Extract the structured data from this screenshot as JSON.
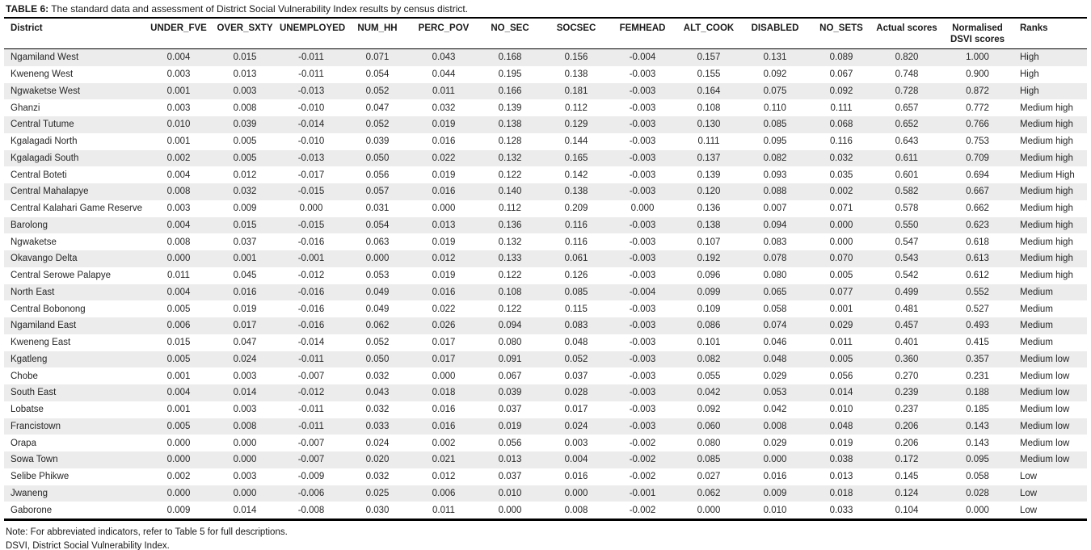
{
  "caption": {
    "label": "TABLE 6:",
    "text": " The standard data and assessment of District Social Vulnerability Index results by census district."
  },
  "table": {
    "columns": [
      "District",
      "UNDER_FVE",
      "OVER_SXTY",
      "UNEMPLOYED",
      "NUM_HH",
      "PERC_POV",
      "NO_SEC",
      "SOCSEC",
      "FEMHEAD",
      "ALT_COOK",
      "DISABLED",
      "NO_SETS",
      "Actual scores",
      "Normalised DSVI scores",
      "Ranks"
    ],
    "rows": [
      [
        "Ngamiland West",
        "0.004",
        "0.015",
        "-0.011",
        "0.071",
        "0.043",
        "0.168",
        "0.156",
        "-0.004",
        "0.157",
        "0.131",
        "0.089",
        "0.820",
        "1.000",
        "High"
      ],
      [
        "Kweneng West",
        "0.003",
        "0.013",
        "-0.011",
        "0.054",
        "0.044",
        "0.195",
        "0.138",
        "-0.003",
        "0.155",
        "0.092",
        "0.067",
        "0.748",
        "0.900",
        "High"
      ],
      [
        "Ngwaketse West",
        "0.001",
        "0.003",
        "-0.013",
        "0.052",
        "0.011",
        "0.166",
        "0.181",
        "-0.003",
        "0.164",
        "0.075",
        "0.092",
        "0.728",
        "0.872",
        "High"
      ],
      [
        "Ghanzi",
        "0.003",
        "0.008",
        "-0.010",
        "0.047",
        "0.032",
        "0.139",
        "0.112",
        "-0.003",
        "0.108",
        "0.110",
        "0.111",
        "0.657",
        "0.772",
        "Medium high"
      ],
      [
        "Central Tutume",
        "0.010",
        "0.039",
        "-0.014",
        "0.052",
        "0.019",
        "0.138",
        "0.129",
        "-0.003",
        "0.130",
        "0.085",
        "0.068",
        "0.652",
        "0.766",
        "Medium high"
      ],
      [
        "Kgalagadi North",
        "0.001",
        "0.005",
        "-0.010",
        "0.039",
        "0.016",
        "0.128",
        "0.144",
        "-0.003",
        "0.111",
        "0.095",
        "0.116",
        "0.643",
        "0.753",
        "Medium high"
      ],
      [
        "Kgalagadi South",
        "0.002",
        "0.005",
        "-0.013",
        "0.050",
        "0.022",
        "0.132",
        "0.165",
        "-0.003",
        "0.137",
        "0.082",
        "0.032",
        "0.611",
        "0.709",
        "Medium high"
      ],
      [
        "Central Boteti",
        "0.004",
        "0.012",
        "-0.017",
        "0.056",
        "0.019",
        "0.122",
        "0.142",
        "-0.003",
        "0.139",
        "0.093",
        "0.035",
        "0.601",
        "0.694",
        "Medium High"
      ],
      [
        "Central Mahalapye",
        "0.008",
        "0.032",
        "-0.015",
        "0.057",
        "0.016",
        "0.140",
        "0.138",
        "-0.003",
        "0.120",
        "0.088",
        "0.002",
        "0.582",
        "0.667",
        "Medium high"
      ],
      [
        "Central Kalahari Game Reserve",
        "0.003",
        "0.009",
        "0.000",
        "0.031",
        "0.000",
        "0.112",
        "0.209",
        "0.000",
        "0.136",
        "0.007",
        "0.071",
        "0.578",
        "0.662",
        "Medium high"
      ],
      [
        "Barolong",
        "0.004",
        "0.015",
        "-0.015",
        "0.054",
        "0.013",
        "0.136",
        "0.116",
        "-0.003",
        "0.138",
        "0.094",
        "0.000",
        "0.550",
        "0.623",
        "Medium high"
      ],
      [
        "Ngwaketse",
        "0.008",
        "0.037",
        "-0.016",
        "0.063",
        "0.019",
        "0.132",
        "0.116",
        "-0.003",
        "0.107",
        "0.083",
        "0.000",
        "0.547",
        "0.618",
        "Medium high"
      ],
      [
        "Okavango Delta",
        "0.000",
        "0.001",
        "-0.001",
        "0.000",
        "0.012",
        "0.133",
        "0.061",
        "-0.003",
        "0.192",
        "0.078",
        "0.070",
        "0.543",
        "0.613",
        "Medium high"
      ],
      [
        "Central Serowe Palapye",
        "0.011",
        "0.045",
        "-0.012",
        "0.053",
        "0.019",
        "0.122",
        "0.126",
        "-0.003",
        "0.096",
        "0.080",
        "0.005",
        "0.542",
        "0.612",
        "Medium high"
      ],
      [
        "North East",
        "0.004",
        "0.016",
        "-0.016",
        "0.049",
        "0.016",
        "0.108",
        "0.085",
        "-0.004",
        "0.099",
        "0.065",
        "0.077",
        "0.499",
        "0.552",
        "Medium"
      ],
      [
        "Central Bobonong",
        "0.005",
        "0.019",
        "-0.016",
        "0.049",
        "0.022",
        "0.122",
        "0.115",
        "-0.003",
        "0.109",
        "0.058",
        "0.001",
        "0.481",
        "0.527",
        "Medium"
      ],
      [
        "Ngamiland East",
        "0.006",
        "0.017",
        "-0.016",
        "0.062",
        "0.026",
        "0.094",
        "0.083",
        "-0.003",
        "0.086",
        "0.074",
        "0.029",
        "0.457",
        "0.493",
        "Medium"
      ],
      [
        "Kweneng East",
        "0.015",
        "0.047",
        "-0.014",
        "0.052",
        "0.017",
        "0.080",
        "0.048",
        "-0.003",
        "0.101",
        "0.046",
        "0.011",
        "0.401",
        "0.415",
        "Medium"
      ],
      [
        "Kgatleng",
        "0.005",
        "0.024",
        "-0.011",
        "0.050",
        "0.017",
        "0.091",
        "0.052",
        "-0.003",
        "0.082",
        "0.048",
        "0.005",
        "0.360",
        "0.357",
        "Medium low"
      ],
      [
        "Chobe",
        "0.001",
        "0.003",
        "-0.007",
        "0.032",
        "0.000",
        "0.067",
        "0.037",
        "-0.003",
        "0.055",
        "0.029",
        "0.056",
        "0.270",
        "0.231",
        "Medium low"
      ],
      [
        "South East",
        "0.004",
        "0.014",
        "-0.012",
        "0.043",
        "0.018",
        "0.039",
        "0.028",
        "-0.003",
        "0.042",
        "0.053",
        "0.014",
        "0.239",
        "0.188",
        "Medium low"
      ],
      [
        "Lobatse",
        "0.001",
        "0.003",
        "-0.011",
        "0.032",
        "0.016",
        "0.037",
        "0.017",
        "-0.003",
        "0.092",
        "0.042",
        "0.010",
        "0.237",
        "0.185",
        "Medium low"
      ],
      [
        "Francistown",
        "0.005",
        "0.008",
        "-0.011",
        "0.033",
        "0.016",
        "0.019",
        "0.024",
        "-0.003",
        "0.060",
        "0.008",
        "0.048",
        "0.206",
        "0.143",
        "Medium low"
      ],
      [
        "Orapa",
        "0.000",
        "0.000",
        "-0.007",
        "0.024",
        "0.002",
        "0.056",
        "0.003",
        "-0.002",
        "0.080",
        "0.029",
        "0.019",
        "0.206",
        "0.143",
        "Medium low"
      ],
      [
        "Sowa Town",
        "0.000",
        "0.000",
        "-0.007",
        "0.020",
        "0.021",
        "0.013",
        "0.004",
        "-0.002",
        "0.085",
        "0.000",
        "0.038",
        "0.172",
        "0.095",
        "Medium low"
      ],
      [
        "Selibe Phikwe",
        "0.002",
        "0.003",
        "-0.009",
        "0.032",
        "0.012",
        "0.037",
        "0.016",
        "-0.002",
        "0.027",
        "0.016",
        "0.013",
        "0.145",
        "0.058",
        "Low"
      ],
      [
        "Jwaneng",
        "0.000",
        "0.000",
        "-0.006",
        "0.025",
        "0.006",
        "0.010",
        "0.000",
        "-0.001",
        "0.062",
        "0.009",
        "0.018",
        "0.124",
        "0.028",
        "Low"
      ],
      [
        "Gaborone",
        "0.009",
        "0.014",
        "-0.008",
        "0.030",
        "0.011",
        "0.000",
        "0.008",
        "-0.002",
        "0.000",
        "0.010",
        "0.033",
        "0.104",
        "0.000",
        "Low"
      ]
    ]
  },
  "notes": [
    "Note: For abbreviated indicators, refer to Table 5 for full descriptions.",
    "DSVI, District Social Vulnerability Index."
  ],
  "colors": {
    "stripe": "#ececec",
    "border": "#000000",
    "text": "#262626"
  }
}
